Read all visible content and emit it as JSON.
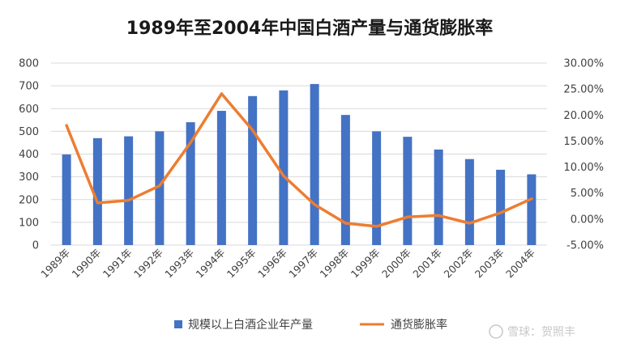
{
  "chart_data": {
    "type": "bar",
    "title": "1989年至2004年中国白酒产量与通货膨胀率",
    "categories": [
      "1989年",
      "1990年",
      "1991年",
      "1992年",
      "1993年",
      "1994年",
      "1995年",
      "1996年",
      "1997年",
      "1998年",
      "1999年",
      "2000年",
      "2001年",
      "2002年",
      "2003年",
      "2004年"
    ],
    "series": [
      {
        "name": "规模以上白酒企业年产量",
        "type": "bar",
        "axis": "left",
        "color": "#4472C4",
        "values": [
          398,
          470,
          478,
          500,
          540,
          590,
          655,
          680,
          708,
          572,
          500,
          476,
          420,
          378,
          331,
          311
        ]
      },
      {
        "name": "通货膨胀率",
        "type": "line",
        "axis": "right",
        "color": "#ED7D31",
        "values": [
          18.0,
          3.1,
          3.6,
          6.4,
          14.7,
          24.1,
          17.1,
          8.3,
          2.8,
          -0.8,
          -1.4,
          0.4,
          0.7,
          -0.8,
          1.2,
          3.9
        ]
      }
    ],
    "y_left": {
      "min": 0,
      "max": 800,
      "step": 100,
      "tick_labels": [
        "0",
        "100",
        "200",
        "300",
        "400",
        "500",
        "600",
        "700",
        "800"
      ]
    },
    "y_right": {
      "min": -5,
      "max": 30,
      "step": 5,
      "tick_labels": [
        "-5.00%",
        "0.00%",
        "5.00%",
        "10.00%",
        "15.00%",
        "20.00%",
        "25.00%",
        "30.00%"
      ]
    },
    "grid": true,
    "legend_position": "bottom",
    "watermark": "雪球：贺照丰"
  }
}
